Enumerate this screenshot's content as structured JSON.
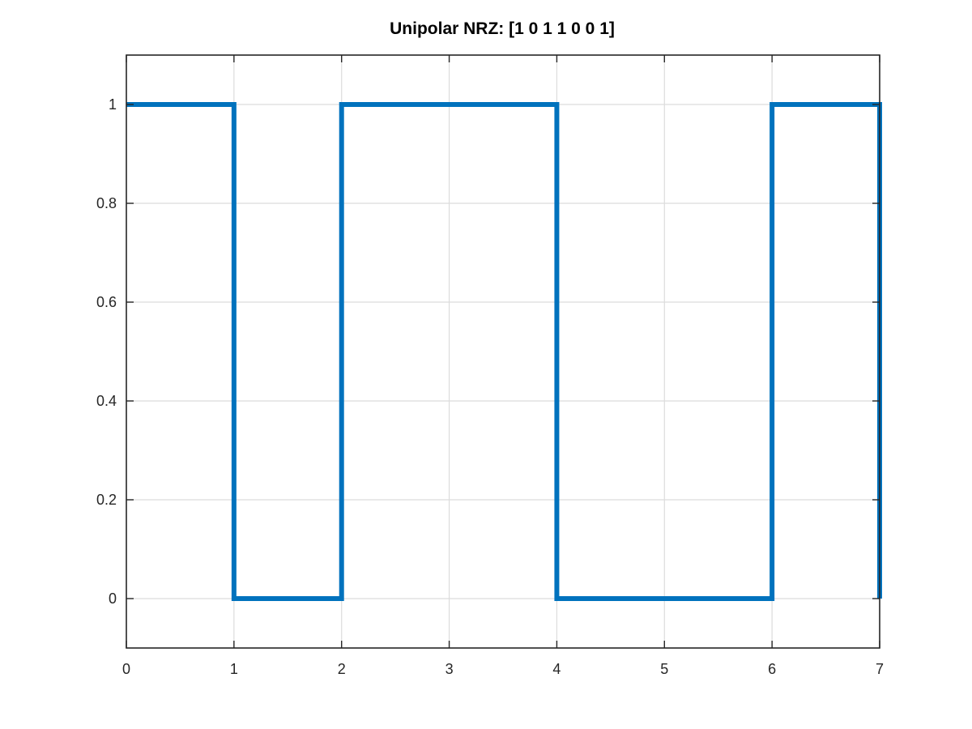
{
  "chart_data": {
    "type": "line",
    "title": "Unipolar NRZ: [1  0  1  1  0  0  1]",
    "xlabel": "",
    "ylabel": "",
    "xlim": [
      0,
      7
    ],
    "ylim": [
      -0.1,
      1.1
    ],
    "xticks": [
      0,
      1,
      2,
      3,
      4,
      5,
      6,
      7
    ],
    "xtick_labels": [
      "0",
      "1",
      "2",
      "3",
      "4",
      "5",
      "6",
      "7"
    ],
    "yticks": [
      0,
      0.2,
      0.4,
      0.6,
      0.8,
      1
    ],
    "ytick_labels": [
      "0",
      "0.2",
      "0.4",
      "0.6",
      "0.8",
      "1"
    ],
    "grid": true,
    "series": [
      {
        "color": "#0072bd",
        "x": [
          0,
          1,
          1,
          2,
          2,
          3,
          3,
          4,
          4,
          5,
          5,
          6,
          6,
          7,
          7
        ],
        "y": [
          1,
          1,
          0,
          0,
          1,
          1,
          1,
          1,
          0,
          0,
          0,
          0,
          1,
          1,
          0
        ]
      }
    ]
  }
}
